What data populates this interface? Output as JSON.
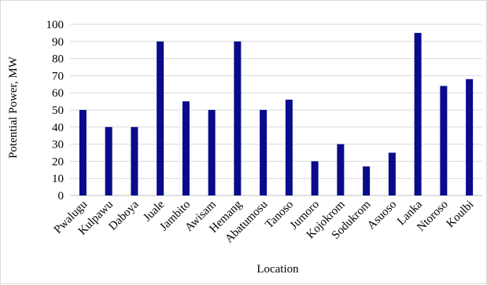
{
  "chart_data": {
    "type": "bar",
    "title": "",
    "xlabel": "Location",
    "ylabel": "Potential Power, MW",
    "ylim": [
      0,
      100
    ],
    "yticks": [
      0,
      10,
      20,
      30,
      40,
      50,
      60,
      70,
      80,
      90,
      100
    ],
    "grid": true,
    "legend": "none",
    "bar_color": "#0a0a8c",
    "categories": [
      "Pwalugu",
      "Kulpawu",
      "Daboya",
      "Juale",
      "Jambito",
      "Awisam",
      "Hemang",
      "Abatumosu",
      "Tanoso",
      "Jumoro",
      "Kojokrom",
      "Sodukrom",
      "Asuoso",
      "Lanka",
      "Ntoroso",
      "Koulbi"
    ],
    "values": [
      50,
      40,
      40,
      90,
      55,
      50,
      90,
      50,
      56,
      20,
      30,
      17,
      25,
      95,
      64,
      68
    ]
  }
}
